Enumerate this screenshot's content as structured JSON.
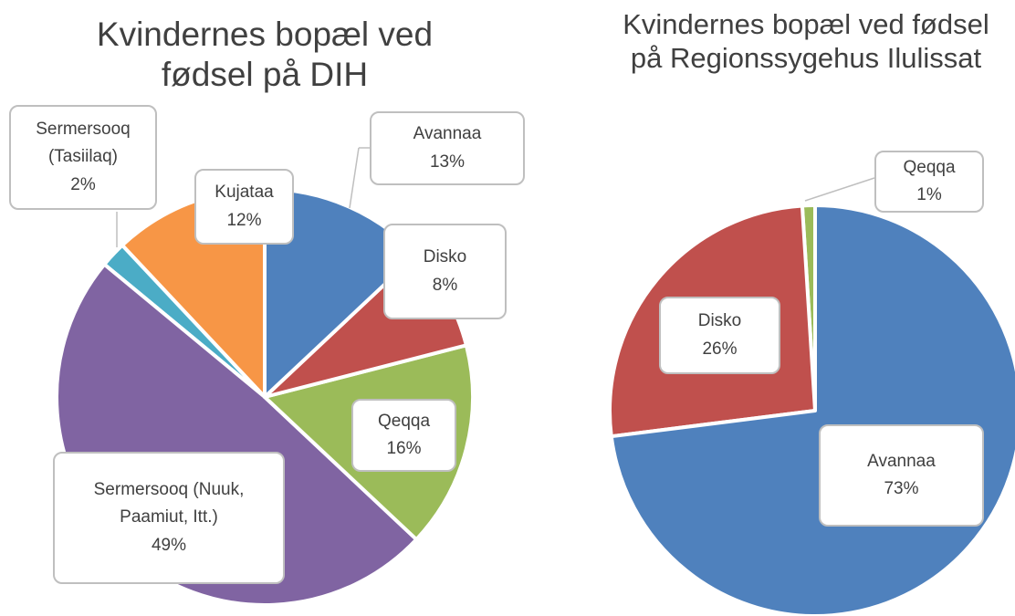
{
  "chart_data": [
    {
      "type": "pie",
      "title": "Kvindernes bopæl ved fødsel på DIH",
      "categories": [
        "Avannaa",
        "Disko",
        "Qeqqa",
        "Sermersooq (Nuuk, Paamiut, Itt.)",
        "Sermersooq (Tasiilaq)",
        "Kujataa"
      ],
      "values": [
        13,
        8,
        16,
        49,
        2,
        12
      ],
      "value_labels": [
        "13%",
        "8%",
        "16%",
        "49%",
        "2%",
        "12%"
      ],
      "colors": [
        "#4f81bd",
        "#c0504d",
        "#9bbb59",
        "#8064a2",
        "#4bacc6",
        "#f79646"
      ]
    },
    {
      "type": "pie",
      "title": "Kvindernes bopæl ved fødsel på Regionssygehus Ilulissat",
      "categories": [
        "Avannaa",
        "Disko",
        "Qeqqa"
      ],
      "values": [
        73,
        26,
        1
      ],
      "value_labels": [
        "73%",
        "26%",
        "1%"
      ],
      "colors": [
        "#4f81bd",
        "#c0504d",
        "#9bbb59"
      ]
    }
  ]
}
